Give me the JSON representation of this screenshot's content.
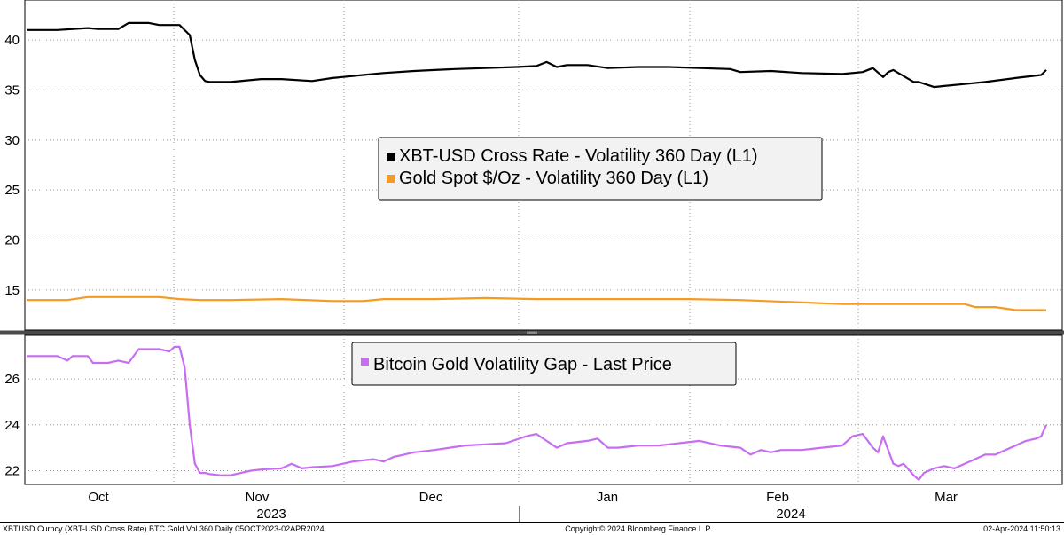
{
  "chart_data": [
    {
      "type": "line",
      "panel": "upper",
      "ylim": [
        11,
        44
      ],
      "yticks": [
        15,
        20,
        25,
        30,
        35,
        40
      ],
      "grid": true,
      "legend_position": "center",
      "series": [
        {
          "name": "XBT-USD Cross Rate - Volatility 360 Day (L1)",
          "color": "#000000",
          "x": [
            0,
            0.03,
            0.06,
            0.07,
            0.09,
            0.1,
            0.12,
            0.13,
            0.15,
            0.16,
            0.165,
            0.17,
            0.175,
            0.18,
            0.19,
            0.2,
            0.23,
            0.25,
            0.28,
            0.3,
            0.33,
            0.35,
            0.38,
            0.4,
            0.42,
            0.45,
            0.48,
            0.5,
            0.51,
            0.52,
            0.53,
            0.55,
            0.57,
            0.6,
            0.63,
            0.66,
            0.69,
            0.7,
            0.73,
            0.76,
            0.8,
            0.82,
            0.83,
            0.84,
            0.845,
            0.85,
            0.87,
            0.875,
            0.89,
            0.9,
            0.92,
            0.94,
            0.97,
            0.995,
            1.0
          ],
          "y": [
            41,
            41,
            41.2,
            41.1,
            41.1,
            41.7,
            41.7,
            41.5,
            41.5,
            40.5,
            38,
            36.5,
            35.9,
            35.8,
            35.8,
            35.8,
            36.1,
            36.1,
            35.9,
            36.2,
            36.5,
            36.7,
            36.9,
            37,
            37.1,
            37.2,
            37.3,
            37.4,
            37.8,
            37.3,
            37.5,
            37.5,
            37.2,
            37.3,
            37.3,
            37.2,
            37.1,
            36.8,
            36.9,
            36.7,
            36.6,
            36.8,
            37.2,
            36.3,
            36.8,
            37,
            35.8,
            35.8,
            35.3,
            35.4,
            35.6,
            35.8,
            36.2,
            36.5,
            37
          ]
        },
        {
          "name": "Gold Spot $/Oz - Volatility 360 Day (L1)",
          "color": "#f59a23",
          "x": [
            0,
            0.04,
            0.06,
            0.1,
            0.13,
            0.15,
            0.17,
            0.2,
            0.25,
            0.3,
            0.33,
            0.35,
            0.4,
            0.45,
            0.5,
            0.55,
            0.6,
            0.65,
            0.7,
            0.75,
            0.8,
            0.85,
            0.9,
            0.92,
            0.93,
            0.95,
            0.97,
            1.0
          ],
          "y": [
            14,
            14,
            14.3,
            14.3,
            14.3,
            14.1,
            14,
            14,
            14.1,
            13.9,
            13.9,
            14.1,
            14.1,
            14.2,
            14.1,
            14.1,
            14.1,
            14.1,
            14,
            13.8,
            13.6,
            13.6,
            13.6,
            13.6,
            13.3,
            13.3,
            13,
            13
          ]
        }
      ]
    },
    {
      "type": "line",
      "panel": "lower",
      "ylim": [
        21.4,
        27.9
      ],
      "yticks": [
        22,
        24,
        26
      ],
      "grid": true,
      "legend_position": "top-center",
      "series": [
        {
          "name": "Bitcoin Gold Volatility Gap - Last Price",
          "color": "#c76df2",
          "x": [
            0,
            0.03,
            0.04,
            0.045,
            0.06,
            0.065,
            0.08,
            0.09,
            0.1,
            0.11,
            0.12,
            0.13,
            0.14,
            0.145,
            0.15,
            0.155,
            0.16,
            0.165,
            0.17,
            0.175,
            0.18,
            0.19,
            0.2,
            0.22,
            0.23,
            0.25,
            0.26,
            0.27,
            0.28,
            0.3,
            0.32,
            0.34,
            0.35,
            0.36,
            0.37,
            0.38,
            0.4,
            0.43,
            0.45,
            0.47,
            0.49,
            0.5,
            0.51,
            0.52,
            0.53,
            0.55,
            0.56,
            0.57,
            0.58,
            0.6,
            0.62,
            0.64,
            0.66,
            0.68,
            0.7,
            0.71,
            0.72,
            0.73,
            0.74,
            0.76,
            0.78,
            0.8,
            0.81,
            0.82,
            0.83,
            0.835,
            0.84,
            0.85,
            0.855,
            0.86,
            0.87,
            0.875,
            0.88,
            0.89,
            0.9,
            0.91,
            0.93,
            0.94,
            0.95,
            0.96,
            0.97,
            0.98,
            0.99,
            0.995,
            1.0
          ],
          "y": [
            27,
            27,
            26.8,
            27,
            27,
            26.7,
            26.7,
            26.8,
            26.7,
            27.3,
            27.3,
            27.3,
            27.2,
            27.4,
            27.4,
            26.5,
            24,
            22.3,
            21.9,
            21.9,
            21.85,
            21.8,
            21.8,
            22,
            22.05,
            22.1,
            22.3,
            22.1,
            22.15,
            22.2,
            22.4,
            22.5,
            22.4,
            22.6,
            22.7,
            22.8,
            22.9,
            23.1,
            23.15,
            23.2,
            23.5,
            23.6,
            23.3,
            23,
            23.2,
            23.3,
            23.4,
            23,
            23,
            23.1,
            23.1,
            23.2,
            23.3,
            23.1,
            23,
            22.7,
            22.9,
            22.8,
            22.9,
            22.9,
            23,
            23.1,
            23.5,
            23.6,
            23,
            22.8,
            23.5,
            22.3,
            22.2,
            22.3,
            21.8,
            21.6,
            21.9,
            22.1,
            22.2,
            22.1,
            22.5,
            22.7,
            22.7,
            22.9,
            23.1,
            23.3,
            23.4,
            23.5,
            24
          ]
        }
      ]
    }
  ],
  "x_axis": {
    "month_labels": [
      "Oct",
      "Nov",
      "Dec",
      "Jan",
      "Feb",
      "Mar"
    ],
    "year_labels": [
      "2023",
      "2024"
    ]
  },
  "footer": {
    "left": "XBTUSD Curncy (XBT-USD Cross Rate) BTC Gold Vol 360  Daily 05OCT2023-02APR2024",
    "center": "Copyright© 2024 Bloomberg Finance L.P.",
    "right": "02-Apr-2024 11:50:13"
  }
}
